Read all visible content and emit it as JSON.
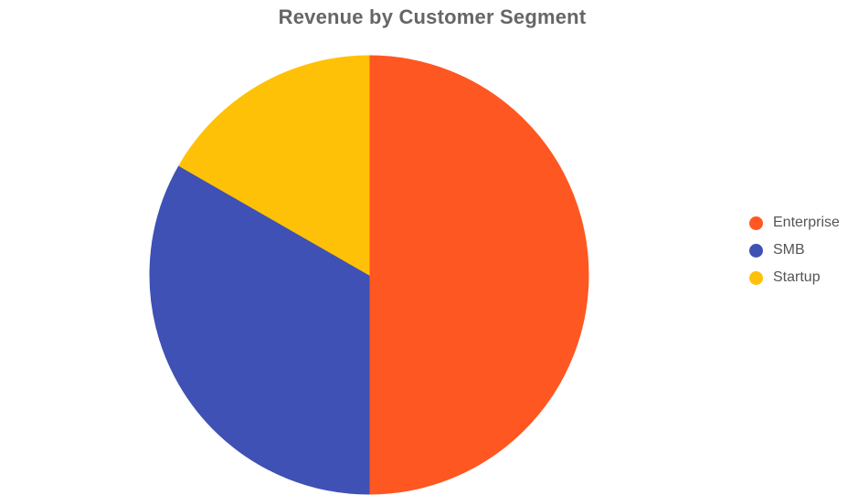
{
  "chart_data": {
    "type": "pie",
    "title": "Revenue by Customer Segment",
    "categories": [
      "Enterprise",
      "SMB",
      "Startup"
    ],
    "values": [
      50,
      33.3,
      16.7
    ],
    "colors": [
      "#FF5722",
      "#3F51B5",
      "#FFC107"
    ],
    "legend_position": "right"
  }
}
